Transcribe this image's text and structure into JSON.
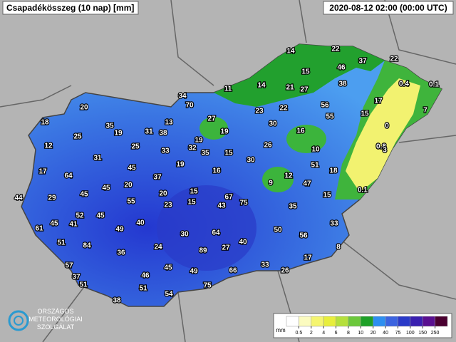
{
  "header": {
    "title": "Csapadékösszeg (10 nap) [mm]",
    "timestamp": "2020-08-12 02:00 (00:00 UTC)"
  },
  "stations": [
    18,
    20,
    35,
    19,
    31,
    38,
    13,
    34,
    70,
    11,
    14,
    14,
    22,
    37,
    22,
    46,
    15,
    21,
    27,
    38,
    0.4,
    0.1,
    56,
    55,
    17,
    15,
    7,
    0,
    0.8,
    3,
    25,
    12,
    27,
    23,
    22,
    19,
    30,
    16,
    10,
    19,
    32,
    35,
    26,
    25,
    33,
    15,
    31,
    30,
    51,
    18,
    17,
    64,
    45,
    19,
    37,
    16,
    12,
    9,
    47,
    0.1,
    20,
    45,
    44,
    29,
    45,
    20,
    15,
    67,
    75,
    15,
    55,
    23,
    15,
    43,
    35,
    52,
    45,
    61,
    45,
    41,
    40,
    49,
    33,
    30,
    64,
    50,
    56,
    51,
    84,
    27,
    40,
    24,
    89,
    36,
    8,
    17,
    57,
    45,
    49,
    66,
    33,
    26,
    37,
    46,
    51,
    75,
    51,
    54,
    38
  ],
  "legend": {
    "unit": "mm",
    "ticks": [
      0.5,
      2,
      4,
      6,
      8,
      10,
      20,
      40,
      75,
      100,
      150,
      250
    ],
    "colors": [
      "#ffffff",
      "#fbfbc0",
      "#f5f570",
      "#e8ee3c",
      "#b5e03c",
      "#6cc83c",
      "#1ea028",
      "#2e8ff0",
      "#3c64e0",
      "#2a3ac8",
      "#3a20b0",
      "#5a1090",
      "#4a0030"
    ]
  },
  "logo": {
    "line1": "ORSZÁGOS",
    "line2": "METEOROLÓGIAI",
    "line3": "SZOLGÁLAT"
  }
}
